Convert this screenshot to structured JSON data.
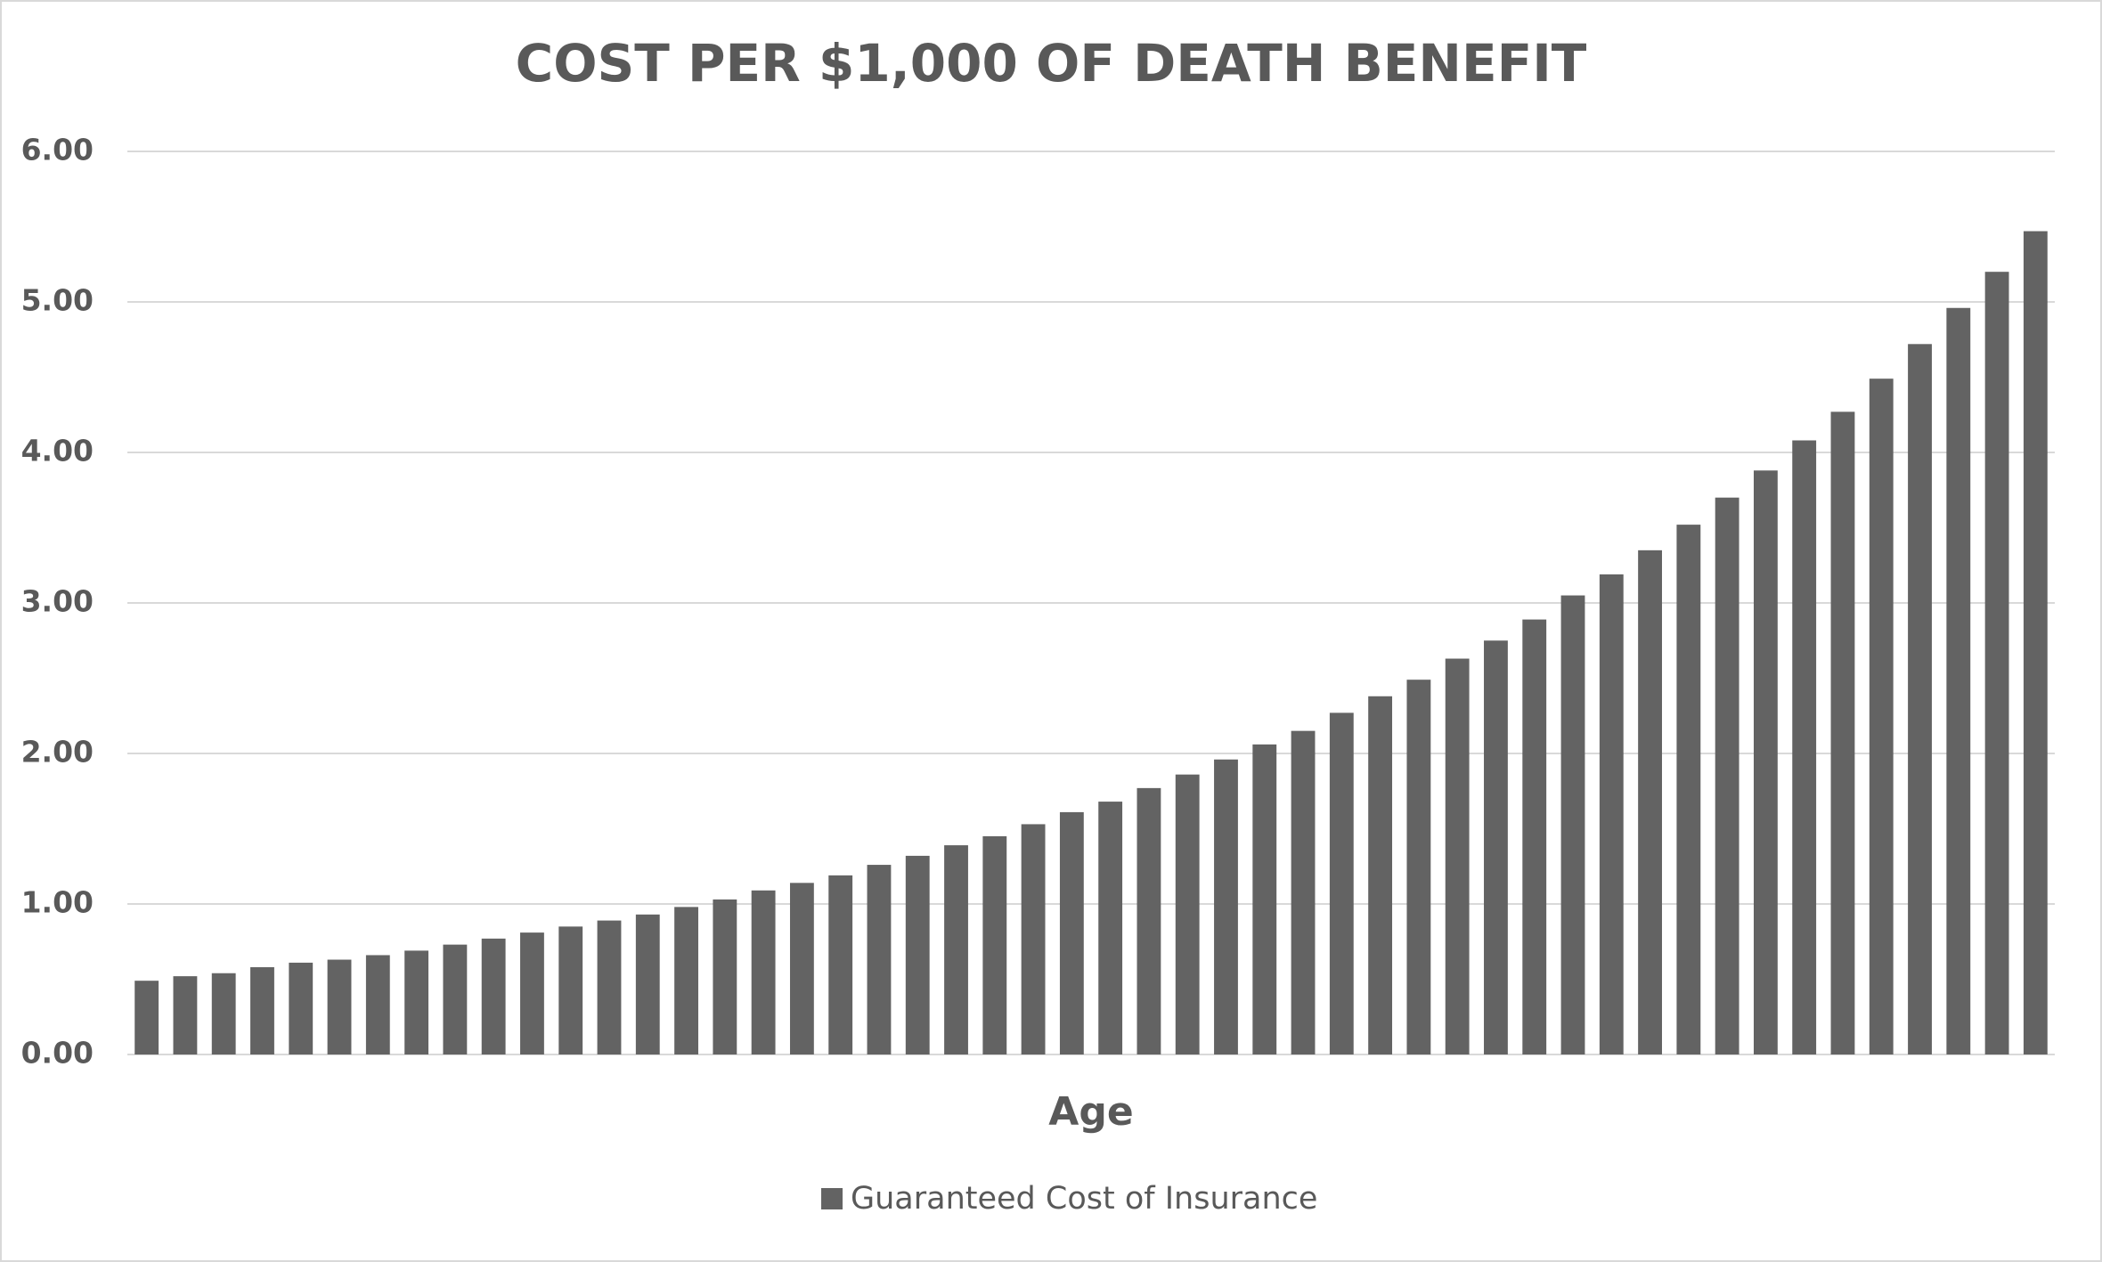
{
  "chart_data": {
    "type": "bar",
    "title": "COST PER $1,000 OF DEATH BENEFIT",
    "x_label": "Age",
    "categories": [
      null,
      null,
      null,
      null,
      null,
      null,
      null,
      null,
      null,
      null,
      null,
      null,
      null,
      null,
      null,
      null,
      null,
      null,
      null,
      null,
      null,
      null,
      null,
      null,
      null,
      null,
      null,
      null,
      null,
      null,
      null,
      null,
      null,
      null,
      null,
      null,
      null,
      null,
      null,
      null,
      null,
      null,
      null,
      null,
      null,
      null,
      null,
      null,
      null,
      null
    ],
    "series": [
      {
        "name": "Guaranteed Cost of Insurance",
        "color": "#636363",
        "values": [
          0.49,
          0.52,
          0.54,
          0.58,
          0.61,
          0.63,
          0.66,
          0.69,
          0.73,
          0.77,
          0.81,
          0.85,
          0.89,
          0.93,
          0.98,
          1.03,
          1.09,
          1.14,
          1.19,
          1.26,
          1.32,
          1.39,
          1.45,
          1.53,
          1.61,
          1.68,
          1.77,
          1.86,
          1.96,
          2.06,
          2.15,
          2.27,
          2.38,
          2.49,
          2.63,
          2.75,
          2.89,
          3.05,
          3.19,
          3.35,
          3.52,
          3.7,
          3.88,
          4.08,
          4.27,
          4.49,
          4.72,
          4.96,
          5.2,
          5.47
        ]
      }
    ],
    "ylim": [
      0,
      6
    ],
    "yticks": [
      {
        "value": 0,
        "label": "0.00"
      },
      {
        "value": 1,
        "label": "1.00"
      },
      {
        "value": 2,
        "label": "2.00"
      },
      {
        "value": 3,
        "label": "3.00"
      },
      {
        "value": 4,
        "label": "4.00"
      },
      {
        "value": 5,
        "label": "5.00"
      },
      {
        "value": 6,
        "label": "6.00"
      }
    ],
    "grid": true,
    "legend": "bottom"
  }
}
